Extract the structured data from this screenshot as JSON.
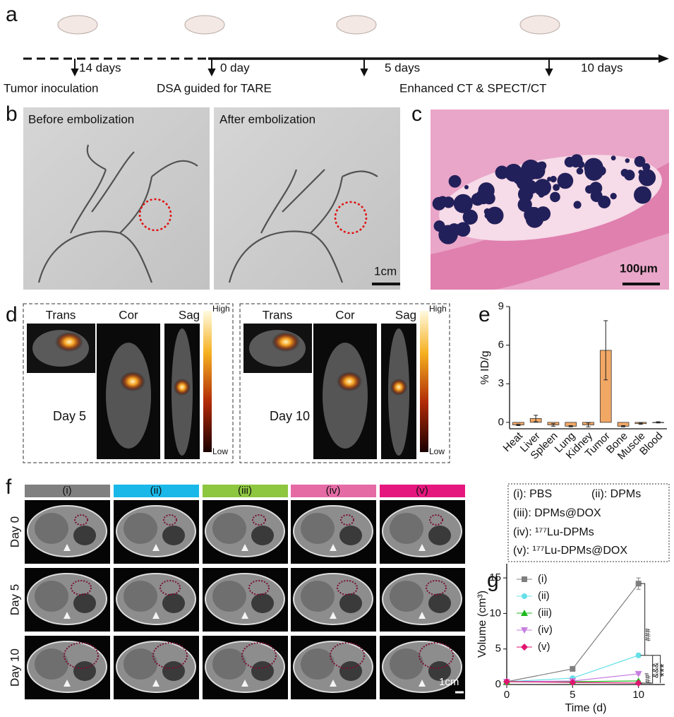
{
  "panel_labels": [
    "a",
    "b",
    "c",
    "d",
    "e",
    "f",
    "g"
  ],
  "timeline": {
    "intervals": [
      "14 days",
      "0 day",
      "5 days",
      "10 days"
    ],
    "events": [
      "Tumor inoculation",
      "DSA guided for TARE",
      "Enhanced CT & SPECT/CT"
    ]
  },
  "angiography": {
    "before": "Before embolization",
    "after": "After embolization",
    "scale_bar": "1cm"
  },
  "histology": {
    "scale_bar": "100μm"
  },
  "spect": {
    "views": [
      "Trans",
      "Cor",
      "Sag"
    ],
    "colorbar": [
      "High",
      "Low"
    ],
    "days": [
      "Day 5",
      "Day 10"
    ]
  },
  "ct": {
    "groups": [
      "(i)",
      "(ii)",
      "(iii)",
      "(iv)",
      "(v)"
    ],
    "colors": [
      "#808080",
      "#1ab8e8",
      "#8dc63f",
      "#e56ba5",
      "#e5177f"
    ],
    "days": [
      "Day 0",
      "Day 5",
      "Day 10"
    ],
    "scale_bar": "1cm"
  },
  "group_legend": [
    "(i): PBS",
    "(ii): DPMs",
    "(iii): DPMs@DOX",
    "(iv): ¹⁷⁷Lu-DPMs",
    "(v): ¹⁷⁷Lu-DPMs@DOX"
  ],
  "chart_data": [
    {
      "type": "bar",
      "ylabel": "% ID/g",
      "categories": [
        "Heat",
        "Liver",
        "Spleen",
        "Lung",
        "Kidney",
        "Tumor",
        "Bone",
        "Muscle",
        "Blood"
      ],
      "values": [
        -0.2,
        0.3,
        -0.2,
        -0.3,
        -0.2,
        5.6,
        -0.3,
        -0.1,
        0.0
      ],
      "errors": [
        0.05,
        0.25,
        0.1,
        0.05,
        0.15,
        2.3,
        0.05,
        0.05,
        0.05
      ],
      "color": "#f2a865",
      "ylim": [
        -0.5,
        9
      ],
      "yticks": [
        0,
        3,
        6,
        9
      ]
    },
    {
      "type": "line",
      "xlabel": "Time (d)",
      "ylabel": "Volume (cm³)",
      "x": [
        0,
        5,
        10
      ],
      "series": [
        {
          "name": "(i)",
          "color": "#7f7f7f",
          "marker": "square",
          "values": [
            0.4,
            2.2,
            14.2
          ],
          "errors": [
            0.05,
            0.2,
            0.8
          ]
        },
        {
          "name": "(ii)",
          "color": "#66e0e8",
          "marker": "circle",
          "values": [
            0.4,
            0.9,
            4.1
          ],
          "errors": [
            0.05,
            0.1,
            0.3
          ]
        },
        {
          "name": "(iii)",
          "color": "#1fb81f",
          "marker": "triangle",
          "values": [
            0.4,
            0.4,
            0.5
          ],
          "errors": [
            0.05,
            0.05,
            0.05
          ]
        },
        {
          "name": "(iv)",
          "color": "#c77fe0",
          "marker": "triangle-down",
          "values": [
            0.4,
            0.5,
            1.5
          ],
          "errors": [
            0.05,
            0.05,
            0.1
          ]
        },
        {
          "name": "(v)",
          "color": "#e0156f",
          "marker": "diamond",
          "values": [
            0.4,
            0.3,
            0.2
          ],
          "errors": [
            0.05,
            0.05,
            0.05
          ]
        }
      ],
      "xlim": [
        0,
        12
      ],
      "ylim": [
        0,
        17
      ],
      "xticks": [
        0,
        5,
        10
      ],
      "yticks": [
        0,
        5,
        10,
        15
      ],
      "legend": "upper left",
      "annotations": [
        "###",
        "&&&",
        "***",
        "##"
      ]
    }
  ]
}
